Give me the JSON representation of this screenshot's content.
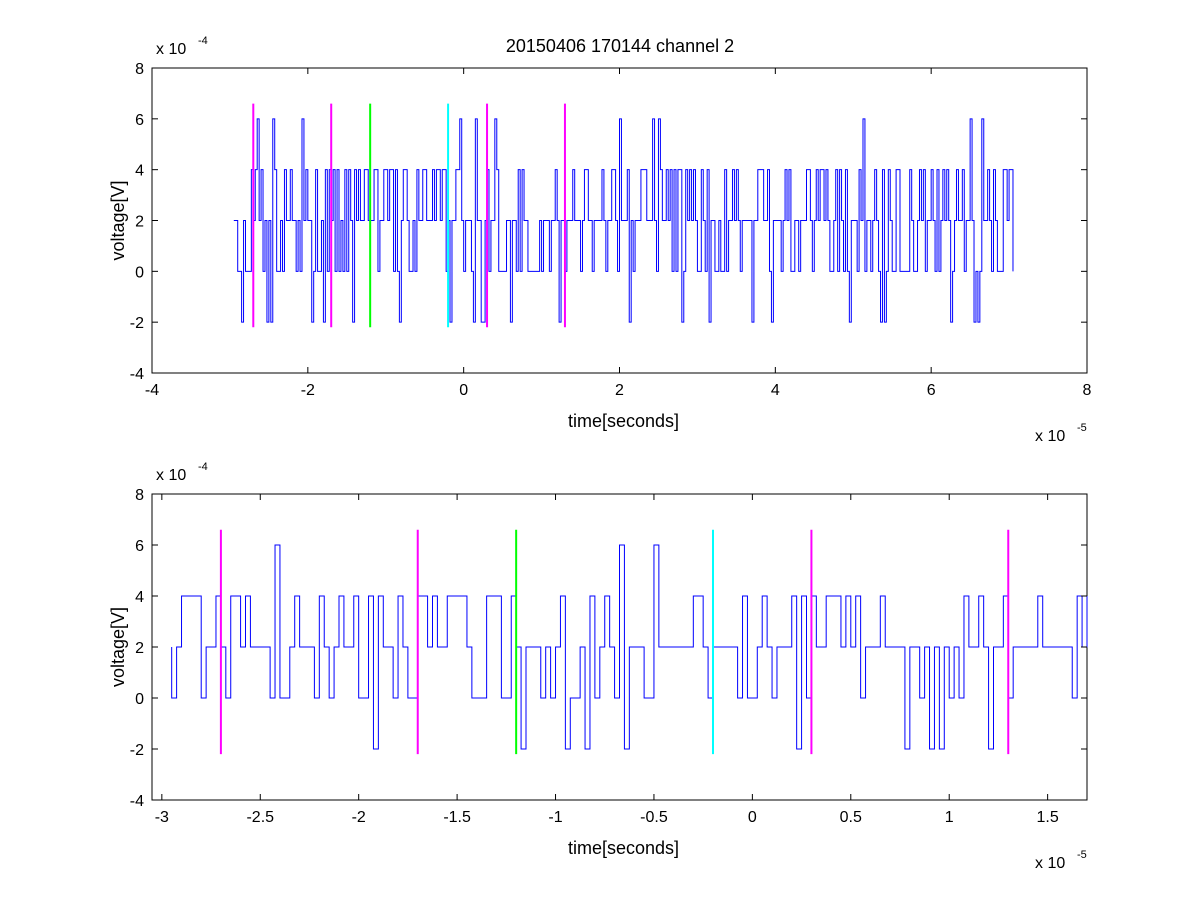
{
  "figure": {
    "title": "20150406 170144 channel 2"
  },
  "chart_data": [
    {
      "type": "line",
      "title": "20150406 170144 channel 2",
      "xlabel": "time[seconds]",
      "ylabel": "voltage[V]",
      "x_exponent_label": "x 10",
      "x_exponent": "-5",
      "y_exponent_label": "x 10",
      "y_exponent": "-4",
      "xlim": [
        -4,
        8
      ],
      "ylim": [
        -4,
        8
      ],
      "xticks": [
        -4,
        -2,
        0,
        2,
        4,
        6,
        8
      ],
      "xtick_labels": [
        "-4",
        "-2",
        "0",
        "2",
        "4",
        "6",
        "8"
      ],
      "yticks": [
        -4,
        -2,
        0,
        2,
        4,
        6,
        8
      ],
      "ytick_labels": [
        "-4",
        "-2",
        "0",
        "2",
        "4",
        "6",
        "8"
      ],
      "grid": false,
      "signal": {
        "color": "#0000ff",
        "x_start": -2.95,
        "x_end": 7.05,
        "baseline": 2,
        "levels": [
          -2,
          0,
          2,
          4,
          6
        ],
        "y_min": -2,
        "y_max": 6
      },
      "markers": [
        {
          "x": -2.7,
          "y_top": 6.6,
          "y_bottom": -2.2,
          "color": "#ff00ff"
        },
        {
          "x": -1.7,
          "y_top": 6.6,
          "y_bottom": -2.2,
          "color": "#ff00ff"
        },
        {
          "x": -1.2,
          "y_top": 6.6,
          "y_bottom": -2.2,
          "color": "#00ff00"
        },
        {
          "x": -0.2,
          "y_top": 6.6,
          "y_bottom": -2.2,
          "color": "#00ffff"
        },
        {
          "x": 0.3,
          "y_top": 6.6,
          "y_bottom": -2.2,
          "color": "#ff00ff"
        },
        {
          "x": 1.3,
          "y_top": 6.6,
          "y_bottom": -2.2,
          "color": "#ff00ff"
        }
      ]
    },
    {
      "type": "line",
      "title": "",
      "xlabel": "time[seconds]",
      "ylabel": "voltage[V]",
      "x_exponent_label": "x 10",
      "x_exponent": "-5",
      "y_exponent_label": "x 10",
      "y_exponent": "-4",
      "xlim": [
        -3.05,
        1.7
      ],
      "ylim": [
        -4,
        8
      ],
      "xticks": [
        -3,
        -2.5,
        -2,
        -1.5,
        -1,
        -0.5,
        0,
        0.5,
        1,
        1.5
      ],
      "xtick_labels": [
        "-3",
        "-2.5",
        "-2",
        "-1.5",
        "-1",
        "-0.5",
        "0",
        "0.5",
        "1",
        "1.5"
      ],
      "yticks": [
        -4,
        -2,
        0,
        2,
        4,
        6,
        8
      ],
      "ytick_labels": [
        "-4",
        "-2",
        "0",
        "2",
        "4",
        "6",
        "8"
      ],
      "grid": false,
      "signal": {
        "color": "#0000ff",
        "x_start": -2.95,
        "x_end": 1.7,
        "baseline": 2,
        "levels": [
          -2,
          0,
          2,
          4,
          6
        ],
        "y_min": -2,
        "y_max": 6
      },
      "markers": [
        {
          "x": -2.7,
          "y_top": 6.6,
          "y_bottom": -2.2,
          "color": "#ff00ff"
        },
        {
          "x": -1.7,
          "y_top": 6.6,
          "y_bottom": -2.2,
          "color": "#ff00ff"
        },
        {
          "x": -1.2,
          "y_top": 6.6,
          "y_bottom": -2.2,
          "color": "#00ff00"
        },
        {
          "x": -0.2,
          "y_top": 6.6,
          "y_bottom": -2.2,
          "color": "#00ffff"
        },
        {
          "x": 0.3,
          "y_top": 6.6,
          "y_bottom": -2.2,
          "color": "#ff00ff"
        },
        {
          "x": 1.3,
          "y_top": 6.6,
          "y_bottom": -2.2,
          "color": "#ff00ff"
        }
      ]
    }
  ]
}
